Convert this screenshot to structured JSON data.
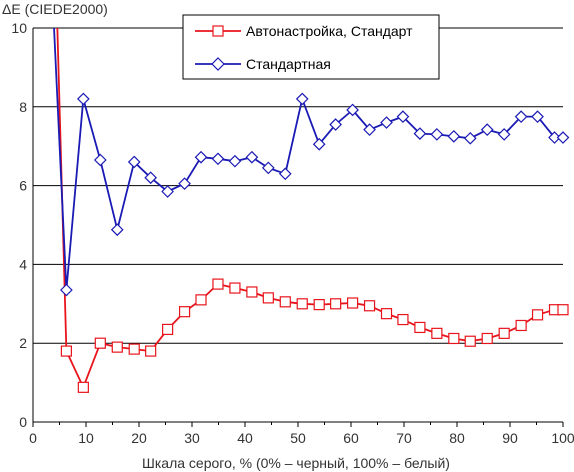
{
  "chart_data": {
    "type": "line",
    "title": "",
    "ylabel": "ΔE (CIEDE2000)",
    "xlabel": "Шкала серого, % (0% – черный, 100% – белый)",
    "xlim": [
      0,
      100
    ],
    "ylim": [
      0,
      10
    ],
    "xticks": [
      "0",
      "10",
      "20",
      "30",
      "40",
      "50",
      "60",
      "70",
      "80",
      "90",
      "100"
    ],
    "yticks": [
      "0",
      "2",
      "4",
      "6",
      "8",
      "10"
    ],
    "grid": "horizontal",
    "legend_position": "top-center",
    "series": [
      {
        "name": "Автонастройка, Стандарт",
        "color": "#e8141c",
        "marker": "square",
        "x": [
          4.5,
          6.3,
          9.5,
          12.7,
          15.9,
          19.1,
          22.2,
          25.4,
          28.6,
          31.7,
          34.9,
          38.1,
          41.3,
          44.4,
          47.6,
          50.8,
          54.0,
          57.1,
          60.3,
          63.5,
          66.7,
          69.8,
          73.0,
          76.2,
          79.4,
          82.5,
          85.7,
          88.9,
          92.1,
          95.2,
          98.4,
          100
        ],
        "y": [
          10.5,
          1.8,
          0.88,
          2.0,
          1.9,
          1.85,
          1.8,
          2.35,
          2.8,
          3.1,
          3.5,
          3.4,
          3.3,
          3.15,
          3.05,
          3.0,
          2.98,
          3.0,
          3.02,
          2.95,
          2.75,
          2.6,
          2.4,
          2.25,
          2.12,
          2.05,
          2.12,
          2.25,
          2.45,
          2.72,
          2.85,
          2.85
        ]
      },
      {
        "name": "Стандартная",
        "color": "#1a1ab4",
        "marker": "diamond",
        "x": [
          3.8,
          6.3,
          9.5,
          12.7,
          15.9,
          19.1,
          22.2,
          25.4,
          28.6,
          31.7,
          34.9,
          38.1,
          41.3,
          44.4,
          47.6,
          50.8,
          54.0,
          57.1,
          60.3,
          63.5,
          66.7,
          69.8,
          73.0,
          76.2,
          79.4,
          82.5,
          85.7,
          88.9,
          92.1,
          95.2,
          98.4,
          100
        ],
        "y": [
          10.5,
          3.35,
          8.2,
          6.65,
          4.88,
          6.6,
          6.2,
          5.85,
          6.05,
          6.72,
          6.68,
          6.62,
          6.72,
          6.45,
          6.3,
          8.2,
          7.05,
          7.55,
          7.92,
          7.42,
          7.6,
          7.75,
          7.32,
          7.3,
          7.25,
          7.2,
          7.42,
          7.3,
          7.75,
          7.75,
          7.22,
          7.22
        ]
      }
    ]
  }
}
